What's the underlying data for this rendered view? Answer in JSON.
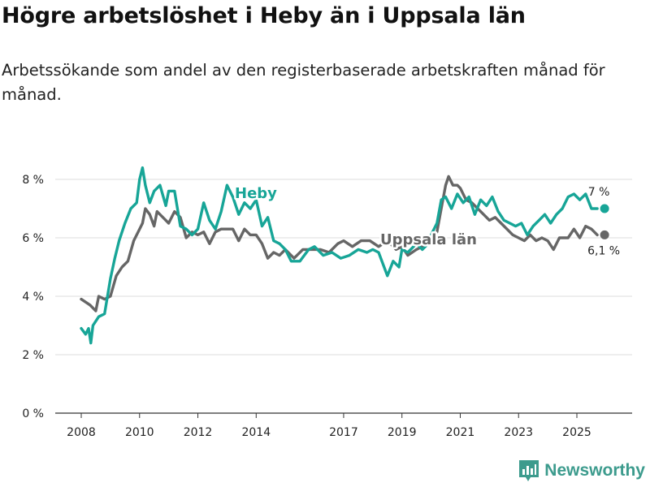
{
  "header": {
    "title": "Högre arbetslöshet i Heby än i Uppsala län",
    "subtitle": "Arbetssökande som andel av den registerbaserade arbetskraften månad för månad."
  },
  "brand": {
    "name": "Newsworthy",
    "color": "#3c9b8d",
    "icon": "bar-chart-logo-icon"
  },
  "chart_data": {
    "type": "line",
    "title": "Högre arbetslöshet i Heby än i Uppsala län",
    "xlabel": "",
    "ylabel": "",
    "xlim": [
      2007.75,
      2026.9
    ],
    "ylim": [
      0,
      8.5
    ],
    "yticks": [
      0,
      2,
      4,
      6,
      8
    ],
    "ytick_labels": [
      "0 %",
      "2 %",
      "4 %",
      "6 %",
      "8 %"
    ],
    "xticks": [
      2008,
      2010,
      2012,
      2014,
      2017,
      2019,
      2021,
      2023,
      2025
    ],
    "xtick_labels": [
      "2008",
      "2010",
      "2012",
      "2014",
      "2017",
      "2019",
      "2021",
      "2023",
      "2025"
    ],
    "grid": true,
    "series": [
      {
        "name": "Uppsala län",
        "label": "Uppsala län",
        "color": "#666666",
        "last_label": "6,1 %",
        "points": [
          [
            2008.0,
            3.9
          ],
          [
            2008.3,
            3.7
          ],
          [
            2008.5,
            3.5
          ],
          [
            2008.6,
            4.0
          ],
          [
            2008.8,
            3.9
          ],
          [
            2009.0,
            4.0
          ],
          [
            2009.2,
            4.7
          ],
          [
            2009.4,
            5.0
          ],
          [
            2009.6,
            5.2
          ],
          [
            2009.8,
            5.9
          ],
          [
            2010.0,
            6.3
          ],
          [
            2010.1,
            6.5
          ],
          [
            2010.2,
            7.0
          ],
          [
            2010.35,
            6.8
          ],
          [
            2010.5,
            6.4
          ],
          [
            2010.6,
            6.9
          ],
          [
            2010.8,
            6.7
          ],
          [
            2011.0,
            6.5
          ],
          [
            2011.2,
            6.9
          ],
          [
            2011.4,
            6.7
          ],
          [
            2011.6,
            6.0
          ],
          [
            2011.8,
            6.2
          ],
          [
            2012.0,
            6.1
          ],
          [
            2012.2,
            6.2
          ],
          [
            2012.4,
            5.8
          ],
          [
            2012.6,
            6.2
          ],
          [
            2012.8,
            6.3
          ],
          [
            2013.0,
            6.3
          ],
          [
            2013.2,
            6.3
          ],
          [
            2013.4,
            5.9
          ],
          [
            2013.6,
            6.3
          ],
          [
            2013.8,
            6.1
          ],
          [
            2014.0,
            6.1
          ],
          [
            2014.2,
            5.8
          ],
          [
            2014.4,
            5.3
          ],
          [
            2014.6,
            5.5
          ],
          [
            2014.8,
            5.4
          ],
          [
            2015.0,
            5.6
          ],
          [
            2015.3,
            5.3
          ],
          [
            2015.6,
            5.6
          ],
          [
            2015.9,
            5.6
          ],
          [
            2016.2,
            5.6
          ],
          [
            2016.5,
            5.5
          ],
          [
            2016.8,
            5.8
          ],
          [
            2017.0,
            5.9
          ],
          [
            2017.3,
            5.7
          ],
          [
            2017.6,
            5.9
          ],
          [
            2017.9,
            5.9
          ],
          [
            2018.2,
            5.7
          ],
          [
            2018.5,
            5.9
          ],
          [
            2018.8,
            5.6
          ],
          [
            2019.0,
            5.7
          ],
          [
            2019.2,
            5.4
          ],
          [
            2019.5,
            5.6
          ],
          [
            2019.7,
            5.7
          ],
          [
            2019.9,
            5.9
          ],
          [
            2020.0,
            6.0
          ],
          [
            2020.2,
            6.2
          ],
          [
            2020.35,
            7.0
          ],
          [
            2020.5,
            7.8
          ],
          [
            2020.6,
            8.1
          ],
          [
            2020.75,
            7.8
          ],
          [
            2020.9,
            7.8
          ],
          [
            2021.0,
            7.7
          ],
          [
            2021.2,
            7.3
          ],
          [
            2021.4,
            7.2
          ],
          [
            2021.6,
            7.0
          ],
          [
            2021.8,
            6.8
          ],
          [
            2022.0,
            6.6
          ],
          [
            2022.2,
            6.7
          ],
          [
            2022.4,
            6.5
          ],
          [
            2022.6,
            6.3
          ],
          [
            2022.8,
            6.1
          ],
          [
            2023.0,
            6.0
          ],
          [
            2023.2,
            5.9
          ],
          [
            2023.4,
            6.1
          ],
          [
            2023.6,
            5.9
          ],
          [
            2023.8,
            6.0
          ],
          [
            2024.0,
            5.9
          ],
          [
            2024.2,
            5.6
          ],
          [
            2024.4,
            6.0
          ],
          [
            2024.7,
            6.0
          ],
          [
            2024.9,
            6.3
          ],
          [
            2025.1,
            6.0
          ],
          [
            2025.3,
            6.4
          ],
          [
            2025.5,
            6.3
          ],
          [
            2025.7,
            6.1
          ]
        ]
      },
      {
        "name": "Heby",
        "label": "Heby",
        "color": "#17a597",
        "last_label": "7 %",
        "points": [
          [
            2008.0,
            2.9
          ],
          [
            2008.15,
            2.7
          ],
          [
            2008.25,
            2.9
          ],
          [
            2008.33,
            2.4
          ],
          [
            2008.4,
            3.0
          ],
          [
            2008.6,
            3.3
          ],
          [
            2008.8,
            3.4
          ],
          [
            2009.0,
            4.6
          ],
          [
            2009.15,
            5.3
          ],
          [
            2009.3,
            5.9
          ],
          [
            2009.5,
            6.5
          ],
          [
            2009.7,
            7.0
          ],
          [
            2009.9,
            7.2
          ],
          [
            2010.0,
            8.0
          ],
          [
            2010.1,
            8.4
          ],
          [
            2010.2,
            7.8
          ],
          [
            2010.35,
            7.2
          ],
          [
            2010.5,
            7.6
          ],
          [
            2010.7,
            7.8
          ],
          [
            2010.9,
            7.1
          ],
          [
            2011.0,
            7.6
          ],
          [
            2011.2,
            7.6
          ],
          [
            2011.4,
            6.4
          ],
          [
            2011.6,
            6.3
          ],
          [
            2011.8,
            6.1
          ],
          [
            2012.0,
            6.3
          ],
          [
            2012.2,
            7.2
          ],
          [
            2012.4,
            6.6
          ],
          [
            2012.6,
            6.3
          ],
          [
            2012.8,
            6.9
          ],
          [
            2013.0,
            7.8
          ],
          [
            2013.2,
            7.4
          ],
          [
            2013.4,
            6.8
          ],
          [
            2013.6,
            7.2
          ],
          [
            2013.8,
            7.0
          ],
          [
            2014.0,
            7.3
          ],
          [
            2014.2,
            6.4
          ],
          [
            2014.4,
            6.7
          ],
          [
            2014.6,
            5.9
          ],
          [
            2014.8,
            5.8
          ],
          [
            2015.0,
            5.6
          ],
          [
            2015.2,
            5.2
          ],
          [
            2015.5,
            5.2
          ],
          [
            2015.8,
            5.6
          ],
          [
            2016.0,
            5.7
          ],
          [
            2016.3,
            5.4
          ],
          [
            2016.6,
            5.5
          ],
          [
            2016.9,
            5.3
          ],
          [
            2017.2,
            5.4
          ],
          [
            2017.5,
            5.6
          ],
          [
            2017.8,
            5.5
          ],
          [
            2018.0,
            5.6
          ],
          [
            2018.2,
            5.5
          ],
          [
            2018.5,
            4.7
          ],
          [
            2018.7,
            5.2
          ],
          [
            2018.9,
            5.0
          ],
          [
            2019.0,
            5.6
          ],
          [
            2019.2,
            5.5
          ],
          [
            2019.5,
            5.8
          ],
          [
            2019.7,
            5.6
          ],
          [
            2019.9,
            5.8
          ],
          [
            2020.0,
            6.1
          ],
          [
            2020.2,
            6.5
          ],
          [
            2020.35,
            7.3
          ],
          [
            2020.5,
            7.4
          ],
          [
            2020.7,
            7.0
          ],
          [
            2020.9,
            7.5
          ],
          [
            2021.1,
            7.2
          ],
          [
            2021.3,
            7.4
          ],
          [
            2021.5,
            6.8
          ],
          [
            2021.7,
            7.3
          ],
          [
            2021.9,
            7.1
          ],
          [
            2022.1,
            7.4
          ],
          [
            2022.3,
            6.9
          ],
          [
            2022.5,
            6.6
          ],
          [
            2022.7,
            6.5
          ],
          [
            2022.9,
            6.4
          ],
          [
            2023.1,
            6.5
          ],
          [
            2023.3,
            6.1
          ],
          [
            2023.5,
            6.4
          ],
          [
            2023.7,
            6.6
          ],
          [
            2023.9,
            6.8
          ],
          [
            2024.1,
            6.5
          ],
          [
            2024.3,
            6.8
          ],
          [
            2024.5,
            7.0
          ],
          [
            2024.7,
            7.4
          ],
          [
            2024.9,
            7.5
          ],
          [
            2025.1,
            7.3
          ],
          [
            2025.3,
            7.5
          ],
          [
            2025.5,
            7.0
          ],
          [
            2025.7,
            7.0
          ]
        ]
      }
    ]
  }
}
